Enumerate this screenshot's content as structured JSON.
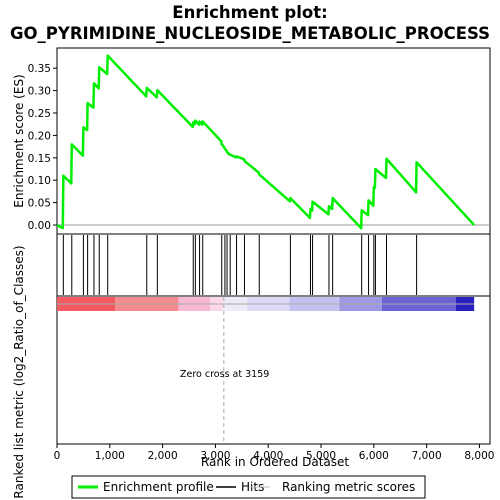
{
  "chart_data": {
    "type": "line",
    "title_line1": "Enrichment plot:",
    "title_line2": "GO_PYRIMIDINE_NUCLEOSIDE_METABOLIC_PROCESS",
    "ylabel_top": "Enrichment score (ES)",
    "ylabel_bottom": "Ranked list metric (log2_Ratio_of_Classes)",
    "xlabel": "Rank in Ordered Dataset",
    "xlim": [
      0,
      8200
    ],
    "ylim": [
      -0.02,
      0.395
    ],
    "x_ticks": [
      0,
      1000,
      2000,
      3000,
      4000,
      5000,
      6000,
      7000,
      8000
    ],
    "x_tick_labels": [
      "0",
      "1,000",
      "2,000",
      "3,000",
      "4,000",
      "5,000",
      "6,000",
      "7,000",
      "8,000"
    ],
    "y_ticks": [
      0.0,
      0.05,
      0.1,
      0.15,
      0.2,
      0.25,
      0.3,
      0.35
    ],
    "y_tick_labels": [
      "0.00",
      "0.05",
      "0.10",
      "0.15",
      "0.20",
      "0.25",
      "0.30",
      "0.35"
    ],
    "n_genes": 7900,
    "zero_cross": 3159,
    "annotation": "Zero cross at 3159",
    "hits": [
      120,
      280,
      500,
      580,
      700,
      800,
      960,
      1700,
      1900,
      2580,
      2620,
      2700,
      2760,
      3120,
      3180,
      3220,
      3280,
      3400,
      3550,
      3830,
      4420,
      4800,
      4840,
      5150,
      5220,
      5770,
      5900,
      6000,
      6030,
      6240,
      6810
    ],
    "es_curve": [
      [
        0,
        0.0
      ],
      [
        110,
        -0.007
      ],
      [
        120,
        0.11
      ],
      [
        270,
        0.093
      ],
      [
        280,
        0.18
      ],
      [
        490,
        0.155
      ],
      [
        500,
        0.218
      ],
      [
        570,
        0.212
      ],
      [
        580,
        0.272
      ],
      [
        690,
        0.262
      ],
      [
        700,
        0.316
      ],
      [
        790,
        0.305
      ],
      [
        800,
        0.352
      ],
      [
        950,
        0.337
      ],
      [
        960,
        0.378
      ],
      [
        1690,
        0.287
      ],
      [
        1700,
        0.306
      ],
      [
        1890,
        0.285
      ],
      [
        1900,
        0.301
      ],
      [
        2570,
        0.219
      ],
      [
        2580,
        0.229
      ],
      [
        2610,
        0.225
      ],
      [
        2620,
        0.233
      ],
      [
        2690,
        0.224
      ],
      [
        2700,
        0.231
      ],
      [
        2750,
        0.224
      ],
      [
        2760,
        0.231
      ],
      [
        3110,
        0.187
      ],
      [
        3120,
        0.18
      ],
      [
        3170,
        0.173
      ],
      [
        3180,
        0.17
      ],
      [
        3210,
        0.166
      ],
      [
        3220,
        0.163
      ],
      [
        3270,
        0.157
      ],
      [
        3280,
        0.157
      ],
      [
        3390,
        0.151
      ],
      [
        3400,
        0.153
      ],
      [
        3540,
        0.147
      ],
      [
        3550,
        0.143
      ],
      [
        3820,
        0.117
      ],
      [
        3830,
        0.113
      ],
      [
        4410,
        0.053
      ],
      [
        4420,
        0.06
      ],
      [
        4790,
        0.016
      ],
      [
        4800,
        0.036
      ],
      [
        4830,
        0.032
      ],
      [
        4840,
        0.052
      ],
      [
        5140,
        0.024
      ],
      [
        5150,
        0.042
      ],
      [
        5210,
        0.036
      ],
      [
        5220,
        0.06
      ],
      [
        5760,
        -0.007
      ],
      [
        5770,
        0.033
      ],
      [
        5890,
        0.022
      ],
      [
        5900,
        0.055
      ],
      [
        5990,
        0.043
      ],
      [
        6000,
        0.085
      ],
      [
        6020,
        0.083
      ],
      [
        6030,
        0.125
      ],
      [
        6230,
        0.105
      ],
      [
        6240,
        0.148
      ],
      [
        6800,
        0.073
      ],
      [
        6810,
        0.14
      ],
      [
        7900,
        0.0
      ]
    ],
    "metric_bands": [
      {
        "from": 0,
        "to": 1100,
        "color": "#f45a5f"
      },
      {
        "from": 1100,
        "to": 2300,
        "color": "#f58b8e"
      },
      {
        "from": 2300,
        "to": 2900,
        "color": "#f8b8d2"
      },
      {
        "from": 2900,
        "to": 3150,
        "color": "#fad8ea"
      },
      {
        "from": 3150,
        "to": 3600,
        "color": "#eeeaf8"
      },
      {
        "from": 3600,
        "to": 4400,
        "color": "#dcdaf6"
      },
      {
        "from": 4400,
        "to": 5350,
        "color": "#c3c1ef"
      },
      {
        "from": 5350,
        "to": 6150,
        "color": "#9d99e4"
      },
      {
        "from": 6150,
        "to": 7550,
        "color": "#6b64d6"
      },
      {
        "from": 7550,
        "to": 7900,
        "color": "#2c1fc0"
      }
    ],
    "legend": [
      {
        "label": "Enrichment profile",
        "color": "#00ee00"
      },
      {
        "label": "Hits",
        "color": "#000000"
      },
      {
        "label": "Ranking metric scores",
        "color": "#bbbbbb"
      }
    ]
  }
}
